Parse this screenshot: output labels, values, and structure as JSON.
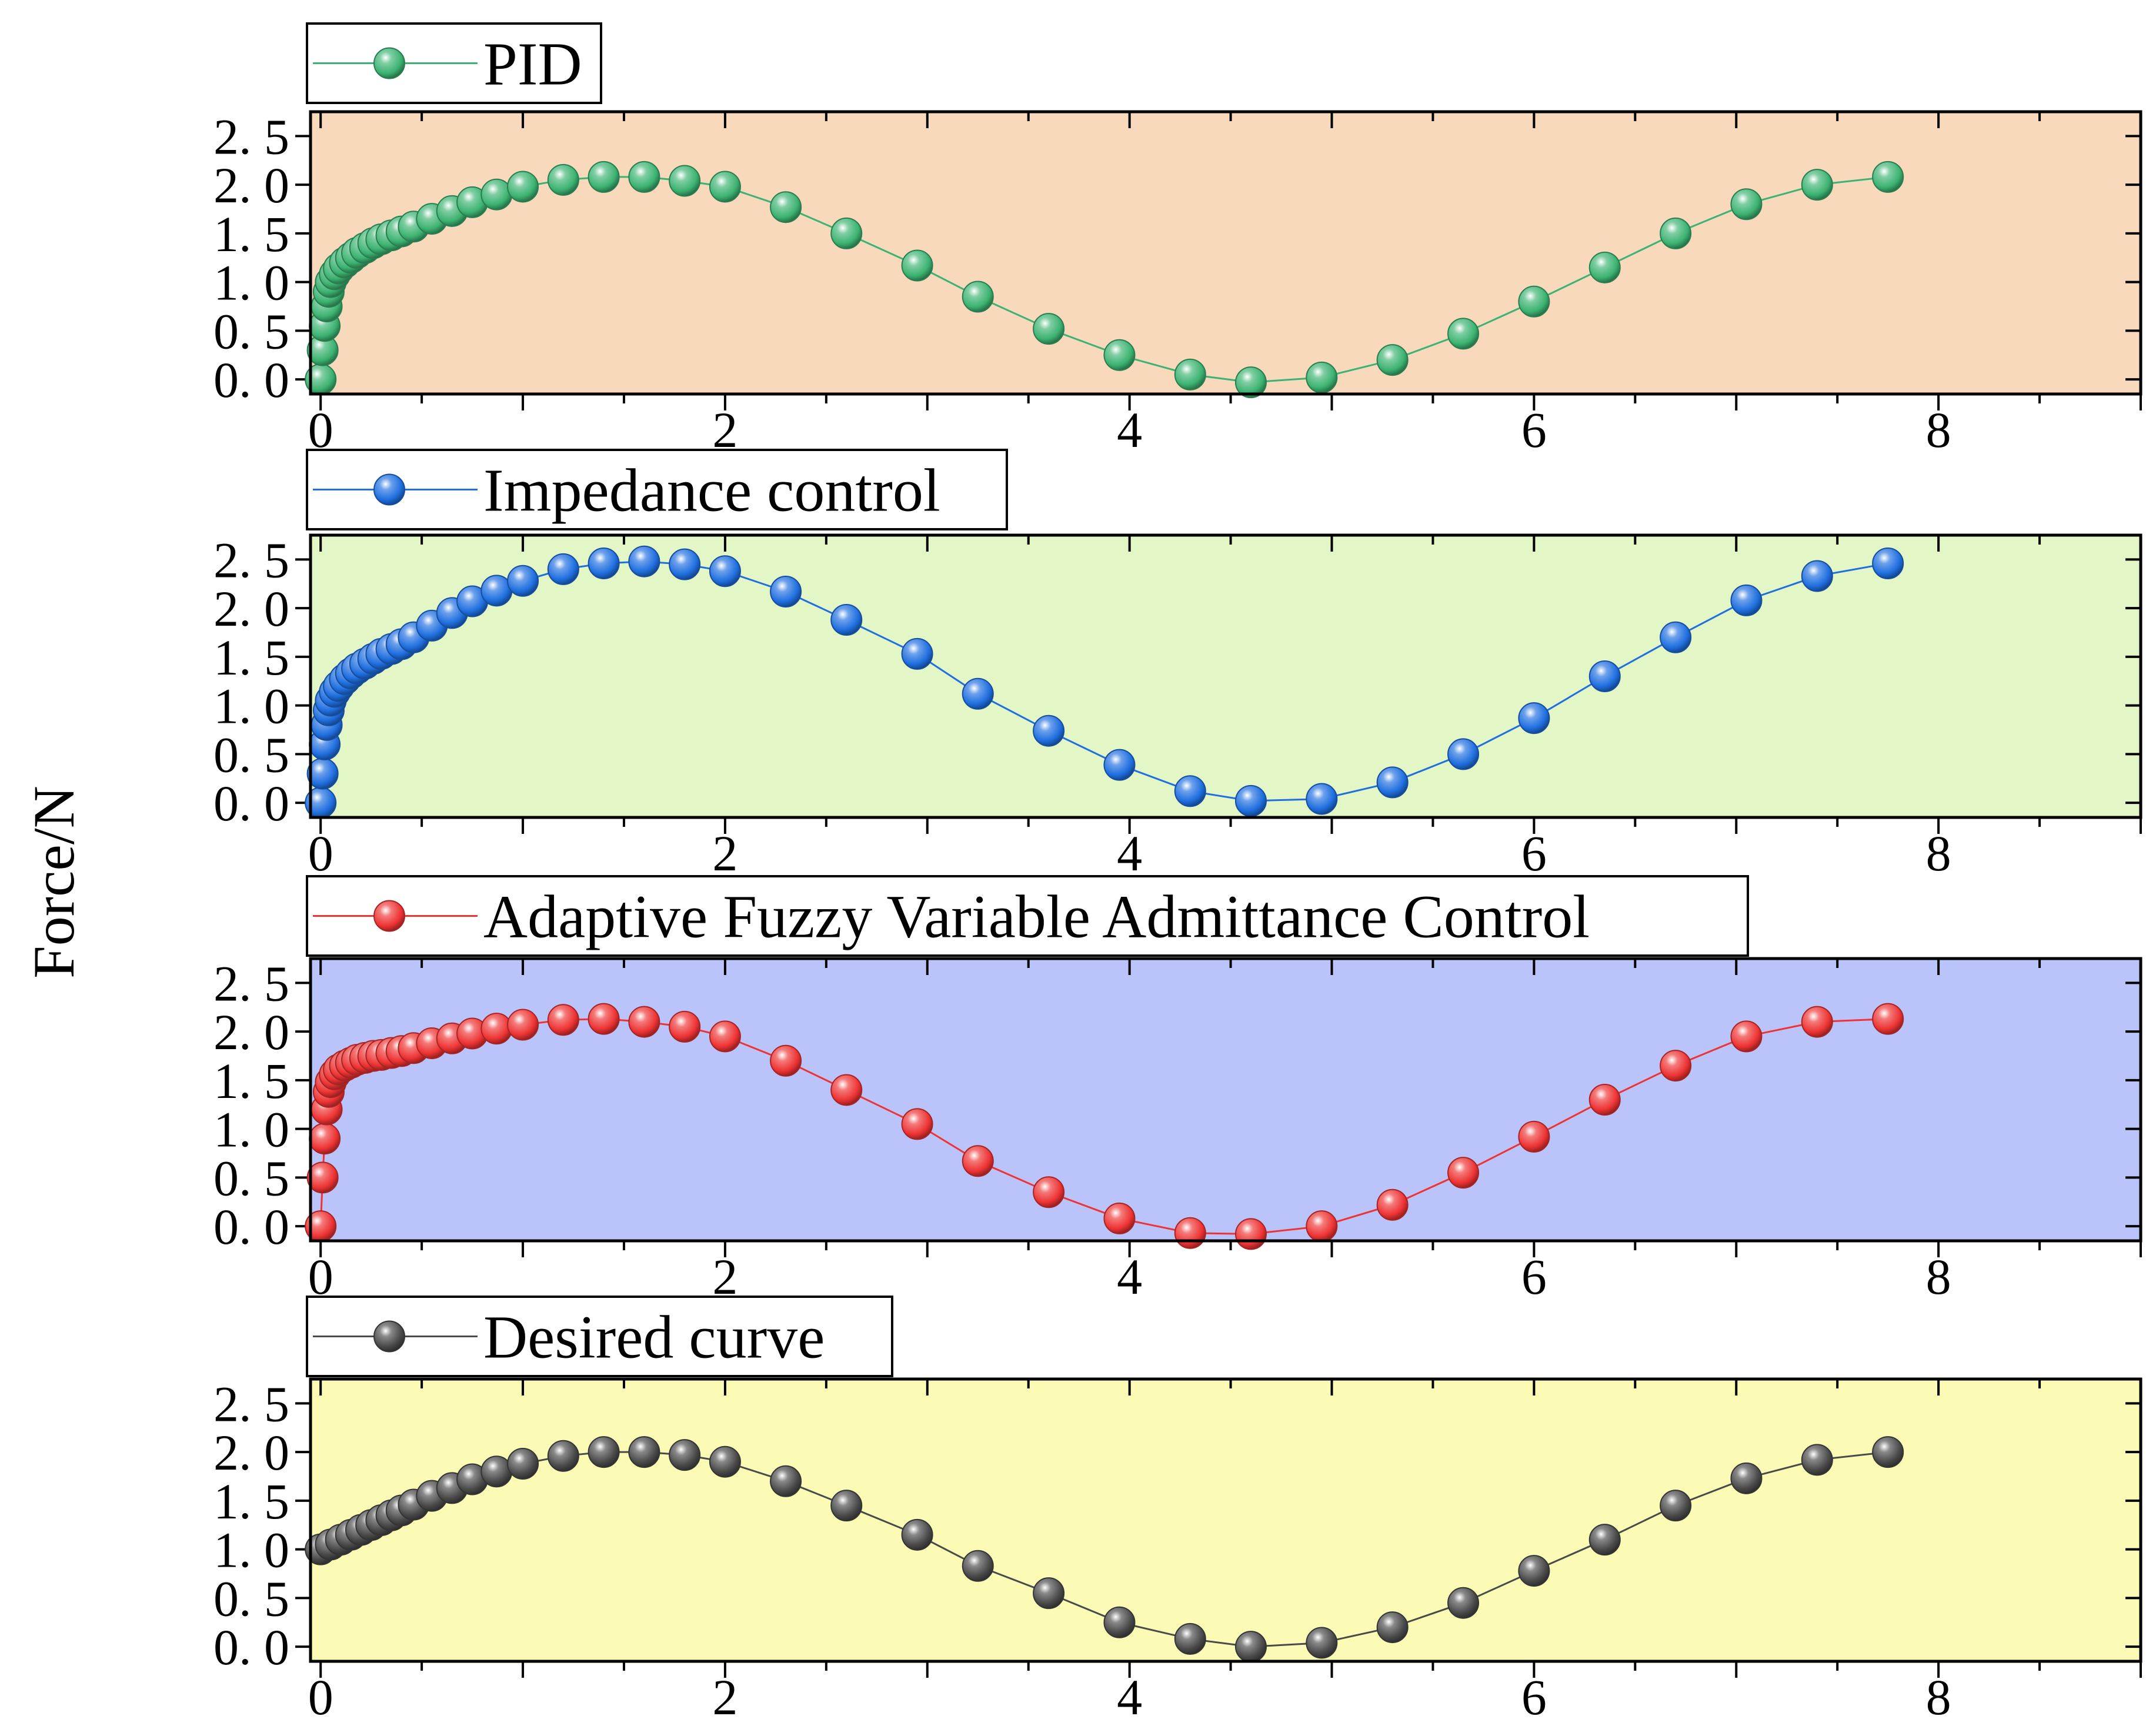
{
  "figure": {
    "ylabel": "Force/N",
    "xticks": [
      0,
      2,
      4,
      6,
      8
    ],
    "yticks": [
      0.0,
      0.5,
      1.0,
      1.5,
      2.0,
      2.5
    ],
    "ytick_labels": [
      "0. 0",
      "0. 5",
      "1. 0",
      "1. 5",
      "2. 0",
      "2. 5"
    ]
  },
  "chart_data": [
    {
      "type": "line",
      "title": "PID",
      "legend": "PID",
      "color": "#3cb371",
      "background": "#f8d9bc",
      "xlim": [
        -0.05,
        9.0
      ],
      "ylim": [
        -0.15,
        2.75
      ],
      "x": [
        0,
        0.01,
        0.02,
        0.03,
        0.04,
        0.05,
        0.07,
        0.09,
        0.12,
        0.15,
        0.18,
        0.22,
        0.26,
        0.3,
        0.35,
        0.4,
        0.46,
        0.55,
        0.65,
        0.75,
        0.87,
        1.0,
        1.2,
        1.4,
        1.6,
        1.8,
        2.0,
        2.3,
        2.6,
        2.95,
        3.25,
        3.6,
        3.95,
        4.3,
        4.6,
        4.95,
        5.3,
        5.65,
        6.0,
        6.35,
        6.7,
        7.05,
        7.4,
        7.75
      ],
      "y": [
        0,
        0.3,
        0.55,
        0.75,
        0.9,
        1.0,
        1.08,
        1.14,
        1.2,
        1.25,
        1.3,
        1.35,
        1.4,
        1.44,
        1.48,
        1.52,
        1.57,
        1.65,
        1.73,
        1.82,
        1.9,
        1.98,
        2.05,
        2.08,
        2.08,
        2.04,
        1.98,
        1.77,
        1.5,
        1.17,
        0.85,
        0.52,
        0.25,
        0.05,
        -0.03,
        0.02,
        0.2,
        0.47,
        0.8,
        1.15,
        1.5,
        1.8,
        2.0,
        2.08
      ]
    },
    {
      "type": "line",
      "title": "Impedance control",
      "legend": "Impedance control",
      "color": "#1f6fe0",
      "background": "#e3f6c6",
      "xlim": [
        -0.05,
        9.0
      ],
      "ylim": [
        -0.15,
        2.75
      ],
      "x": [
        0,
        0.01,
        0.02,
        0.03,
        0.04,
        0.05,
        0.07,
        0.09,
        0.12,
        0.15,
        0.18,
        0.22,
        0.26,
        0.3,
        0.35,
        0.4,
        0.46,
        0.55,
        0.65,
        0.75,
        0.87,
        1.0,
        1.2,
        1.4,
        1.6,
        1.8,
        2.0,
        2.3,
        2.6,
        2.95,
        3.25,
        3.6,
        3.95,
        4.3,
        4.6,
        4.95,
        5.3,
        5.65,
        6.0,
        6.35,
        6.7,
        7.05,
        7.4,
        7.75
      ],
      "y": [
        0,
        0.3,
        0.6,
        0.8,
        0.95,
        1.05,
        1.14,
        1.2,
        1.27,
        1.33,
        1.38,
        1.43,
        1.48,
        1.53,
        1.58,
        1.63,
        1.7,
        1.82,
        1.95,
        2.07,
        2.18,
        2.28,
        2.4,
        2.46,
        2.48,
        2.45,
        2.38,
        2.17,
        1.88,
        1.53,
        1.12,
        0.74,
        0.39,
        0.12,
        0.02,
        0.04,
        0.21,
        0.5,
        0.87,
        1.3,
        1.7,
        2.08,
        2.33,
        2.46
      ]
    },
    {
      "type": "line",
      "title": "Adaptive Fuzzy Variable Admittance Control",
      "legend": "Adaptive Fuzzy Variable Admittance Control",
      "color": "#ee3333",
      "background": "#bac4fb",
      "xlim": [
        -0.05,
        9.0
      ],
      "ylim": [
        -0.15,
        2.75
      ],
      "x": [
        0,
        0.01,
        0.02,
        0.03,
        0.04,
        0.05,
        0.07,
        0.09,
        0.12,
        0.15,
        0.18,
        0.22,
        0.26,
        0.3,
        0.35,
        0.4,
        0.46,
        0.55,
        0.65,
        0.75,
        0.87,
        1.0,
        1.2,
        1.4,
        1.6,
        1.8,
        2.0,
        2.3,
        2.6,
        2.95,
        3.25,
        3.6,
        3.95,
        4.3,
        4.6,
        4.95,
        5.3,
        5.65,
        6.0,
        6.35,
        6.7,
        7.05,
        7.4,
        7.75
      ],
      "y": [
        0,
        0.5,
        0.9,
        1.2,
        1.38,
        1.48,
        1.56,
        1.61,
        1.65,
        1.68,
        1.71,
        1.73,
        1.75,
        1.76,
        1.78,
        1.8,
        1.83,
        1.88,
        1.93,
        1.98,
        2.03,
        2.07,
        2.12,
        2.13,
        2.1,
        2.05,
        1.95,
        1.7,
        1.4,
        1.05,
        0.67,
        0.35,
        0.08,
        -0.07,
        -0.08,
        0.0,
        0.22,
        0.55,
        0.92,
        1.3,
        1.65,
        1.95,
        2.1,
        2.13
      ]
    },
    {
      "type": "line",
      "title": "Desired curve",
      "legend": "Desired curve",
      "color": "#4a4a4a",
      "background": "#fbfbb6",
      "xlim": [
        -0.05,
        9.0
      ],
      "ylim": [
        -0.15,
        2.75
      ],
      "x": [
        0,
        0.05,
        0.1,
        0.15,
        0.2,
        0.25,
        0.3,
        0.35,
        0.4,
        0.46,
        0.55,
        0.65,
        0.75,
        0.87,
        1.0,
        1.2,
        1.4,
        1.6,
        1.8,
        2.0,
        2.3,
        2.6,
        2.95,
        3.25,
        3.6,
        3.95,
        4.3,
        4.6,
        4.95,
        5.3,
        5.65,
        6.0,
        6.35,
        6.7,
        7.05,
        7.4,
        7.75
      ],
      "y": [
        1.0,
        1.05,
        1.1,
        1.15,
        1.2,
        1.25,
        1.3,
        1.35,
        1.4,
        1.46,
        1.55,
        1.63,
        1.72,
        1.8,
        1.88,
        1.96,
        2.0,
        2.0,
        1.97,
        1.9,
        1.7,
        1.45,
        1.15,
        0.83,
        0.55,
        0.25,
        0.08,
        0.0,
        0.04,
        0.2,
        0.45,
        0.78,
        1.1,
        1.45,
        1.73,
        1.92,
        2.0
      ]
    }
  ]
}
